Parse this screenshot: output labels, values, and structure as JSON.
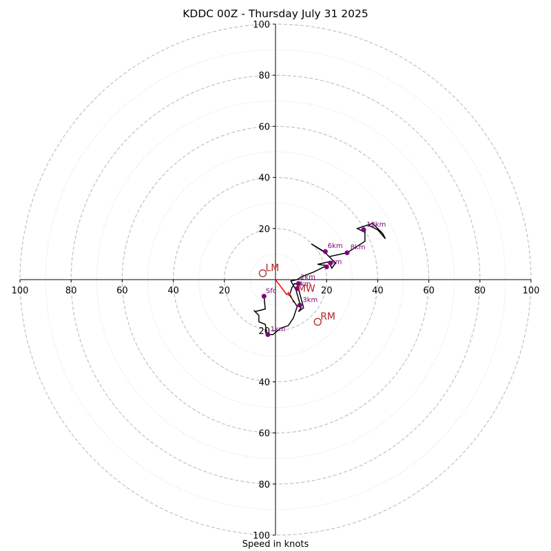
{
  "title": "KDDC 00Z - Thursday July 31 2025",
  "xlabel": "Speed in knots",
  "chart_data": {
    "type": "line",
    "title": "KDDC 00Z - Thursday July 31 2025",
    "xlabel": "Speed in knots",
    "ylabel": "",
    "xlim": [
      -100,
      100
    ],
    "ylim": [
      -100,
      100
    ],
    "rings_major": [
      20,
      40,
      60,
      80,
      100
    ],
    "rings_minor": [
      10,
      30,
      50,
      70,
      90
    ],
    "x_tick_labels": [
      "100",
      "80",
      "60",
      "40",
      "20",
      "20",
      "40",
      "60",
      "80",
      "100"
    ],
    "x_tick_values": [
      -100,
      -80,
      -60,
      -40,
      -20,
      20,
      40,
      60,
      80,
      100
    ],
    "y_tick_labels": [
      "100",
      "80",
      "60",
      "40",
      "20",
      "20",
      "40",
      "60",
      "80",
      "100"
    ],
    "y_tick_values": [
      100,
      80,
      60,
      40,
      20,
      -20,
      -40,
      -60,
      -80,
      -100
    ],
    "grid": true,
    "colors": {
      "trace": "#000000",
      "height_markers": "#800080",
      "storm_motion": "#b22222",
      "mean_wind": "#ff0000",
      "ring_major": "#bbbbbb",
      "ring_minor": "#cccccc"
    },
    "trace": [
      [
        -4.5,
        -6.5
      ],
      [
        -4.0,
        -11.5
      ],
      [
        -8.0,
        -12.5
      ],
      [
        -8.5,
        -12.0
      ],
      [
        -6.5,
        -14.0
      ],
      [
        -6.5,
        -16.5
      ],
      [
        -4.0,
        -17.5
      ],
      [
        -3.5,
        -20.5
      ],
      [
        -3.0,
        -21.5
      ],
      [
        -1.0,
        -21.5
      ],
      [
        2.0,
        -19.0
      ],
      [
        5.0,
        -18.0
      ],
      [
        7.0,
        -15.0
      ],
      [
        8.5,
        -10.5
      ],
      [
        6.5,
        -7.5
      ],
      [
        5.5,
        -6.0
      ],
      [
        6.5,
        -3.0
      ],
      [
        7.5,
        -1.5
      ],
      [
        8.5,
        -2.0
      ],
      [
        9.0,
        -3.0
      ],
      [
        9.5,
        -5.5
      ],
      [
        11.0,
        -11.0
      ],
      [
        9.0,
        -12.5
      ],
      [
        10.0,
        -11.0
      ],
      [
        8.0,
        -4.0
      ],
      [
        6.0,
        -0.5
      ],
      [
        8.5,
        0
      ],
      [
        10.0,
        1.0
      ],
      [
        15.0,
        3.0
      ],
      [
        20.0,
        5.5
      ],
      [
        16.5,
        6.0
      ],
      [
        21.0,
        7.0
      ],
      [
        22.0,
        4.5
      ],
      [
        23.5,
        6.5
      ],
      [
        19.5,
        10.5
      ],
      [
        14.0,
        14.0
      ],
      [
        19.0,
        11.0
      ],
      [
        21.0,
        9.0
      ],
      [
        28.0,
        10.5
      ],
      [
        35.0,
        15.0
      ],
      [
        35.0,
        18.5
      ],
      [
        32.0,
        20.0
      ],
      [
        38.0,
        22.0
      ],
      [
        42.0,
        18.0
      ],
      [
        43.0,
        16.0
      ],
      [
        40.0,
        19.5
      ],
      [
        36.0,
        21.5
      ]
    ],
    "height_markers": [
      {
        "label": "Sfc",
        "u": -4.5,
        "v": -6.5
      },
      {
        "label": "1km",
        "u": -3.0,
        "v": -21.5
      },
      {
        "label": "2km",
        "u": 9.0,
        "v": -1.5
      },
      {
        "label": "3km",
        "u": 9.5,
        "v": -10.0
      },
      {
        "label": "4km",
        "u": 8.5,
        "v": -3.5
      },
      {
        "label": "5km",
        "u": 20.0,
        "v": 5.0
      },
      {
        "label": "6km",
        "u": 19.5,
        "v": 11.0
      },
      {
        "label": "7km",
        "u": 21.5,
        "v": 6.5
      },
      {
        "label": "8km",
        "u": 28.0,
        "v": 10.5
      },
      {
        "label": "12km",
        "u": 34.5,
        "v": 19.5
      }
    ],
    "height_labels_shown": [
      {
        "text": "Sfc",
        "u": -3.8,
        "v": -5.3
      },
      {
        "text": "1km",
        "u": -2.0,
        "v": -20.2
      },
      {
        "text": "2km",
        "u": 9.7,
        "v": 0.1
      },
      {
        "text": "km",
        "u": 9.7,
        "v": -2.5
      },
      {
        "text": "3km",
        "u": 10.6,
        "v": -8.7
      },
      {
        "text": "6km",
        "u": 20.4,
        "v": 12.4
      },
      {
        "text": "8km",
        "u": 29.3,
        "v": 11.9
      },
      {
        "text": "12km",
        "u": 35.6,
        "v": 20.7
      },
      {
        "text": "km",
        "u": 21.8,
        "v": 6.1
      }
    ],
    "storm_motions": [
      {
        "label": "LM",
        "u": -5.0,
        "v": 2.5
      },
      {
        "label": "RM",
        "u": 16.5,
        "v": -16.5
      },
      {
        "label": "MW",
        "u": 7.5,
        "v": -5.5
      }
    ],
    "mean_wind_vector": {
      "from": [
        0,
        0
      ],
      "to": [
        4.5,
        -6.0
      ]
    },
    "lm_mw_segment": {
      "from": [
        6.0,
        -6.0
      ],
      "to": [
        7.0,
        -9.0
      ]
    }
  }
}
